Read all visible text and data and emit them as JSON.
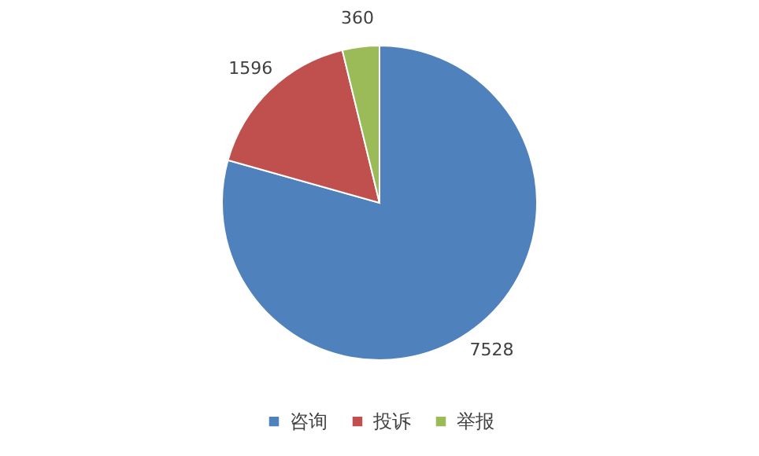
{
  "chart_data": {
    "type": "pie",
    "categories": [
      "咨询",
      "投诉",
      "举报"
    ],
    "values": [
      7528,
      1596,
      360
    ],
    "colors": [
      "#4f81bd",
      "#c0504d",
      "#9bbb59"
    ],
    "data_labels": true,
    "legend": "bottom"
  }
}
